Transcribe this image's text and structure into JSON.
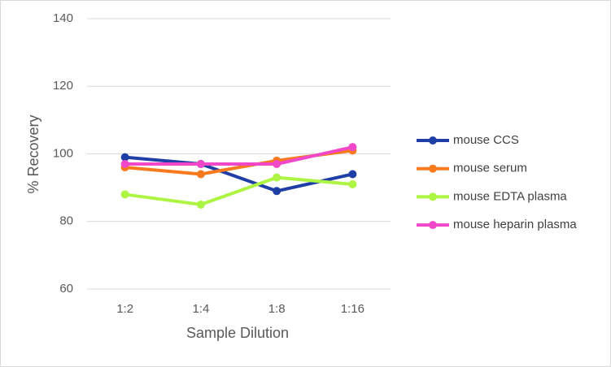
{
  "chart_data": {
    "type": "line",
    "x_label": "Sample Dilution",
    "y_label": "% Recovery",
    "categories": [
      "1:2",
      "1:4",
      "1:8",
      "1:16"
    ],
    "series": [
      {
        "name": "mouse CCS",
        "color": "#1f3fa6",
        "values": [
          99,
          97,
          89,
          94
        ]
      },
      {
        "name": "mouse serum",
        "color": "#f77b1e",
        "values": [
          96,
          94,
          98,
          101
        ]
      },
      {
        "name": "mouse EDTA plasma",
        "color": "#adf542",
        "values": [
          88,
          85,
          93,
          91
        ]
      },
      {
        "name": "mouse heparin plasma",
        "color": "#f048c8",
        "values": [
          97,
          97,
          97,
          102
        ]
      }
    ],
    "ylim": [
      60,
      140
    ],
    "yticks": [
      60,
      80,
      100,
      120,
      140
    ],
    "grid": true,
    "legend": "right"
  }
}
